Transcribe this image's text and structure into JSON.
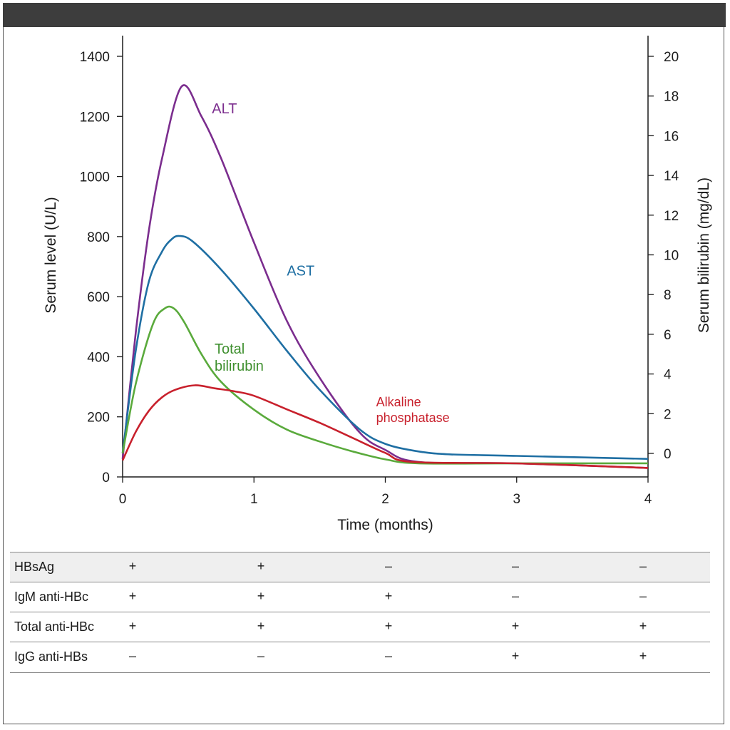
{
  "chart_data": {
    "type": "line",
    "xlabel": "Time (months)",
    "ylabel": "Serum level (U/L)",
    "y2label": "Serum bilirubin (mg/dL)",
    "xlim": [
      0,
      4
    ],
    "ylim": [
      0,
      1400
    ],
    "y2lim": [
      -1,
      21
    ],
    "x_ticks": [
      "0",
      "1",
      "2",
      "3",
      "4"
    ],
    "y_ticks": [
      "0",
      "200",
      "400",
      "600",
      "800",
      "1000",
      "1200",
      "1400"
    ],
    "y2_ticks": [
      "0",
      "2",
      "4",
      "6",
      "8",
      "10",
      "12",
      "14",
      "16",
      "18",
      "20"
    ],
    "grid": false,
    "series": [
      {
        "name": "ALT",
        "axis": "left",
        "color": "#7b2d8e",
        "x": [
          0,
          0.1,
          0.2,
          0.3,
          0.45,
          0.6,
          0.75,
          1.0,
          1.25,
          1.5,
          1.8,
          2.0,
          2.25,
          3.0,
          4.0
        ],
        "y": [
          60,
          480,
          820,
          1060,
          1300,
          1200,
          1060,
          780,
          520,
          330,
          150,
          90,
          50,
          45,
          30
        ]
      },
      {
        "name": "AST",
        "axis": "left",
        "color": "#1f6fa3",
        "x": [
          0,
          0.1,
          0.2,
          0.3,
          0.37,
          0.43,
          0.53,
          0.75,
          1.0,
          1.25,
          1.5,
          1.8,
          2.0,
          2.25,
          2.5,
          3.0,
          4.0
        ],
        "y": [
          80,
          420,
          650,
          750,
          790,
          802,
          785,
          690,
          560,
          420,
          290,
          160,
          110,
          85,
          75,
          70,
          60
        ]
      },
      {
        "name": "Total bilirubin",
        "axis": "right",
        "color": "#5aaa3c",
        "x": [
          0,
          0.1,
          0.23,
          0.32,
          0.39,
          0.47,
          0.6,
          0.75,
          1.0,
          1.25,
          1.5,
          1.75,
          2.0,
          2.25,
          3.0,
          4.0
        ],
        "y": [
          0,
          3.5,
          6.5,
          7.3,
          7.3,
          6.6,
          5.0,
          3.6,
          2.2,
          1.2,
          0.6,
          0.1,
          -0.3,
          -0.5,
          -0.5,
          -0.5
        ]
      },
      {
        "name": "Alkaline phosphatase",
        "axis": "left",
        "color": "#c8202c",
        "x": [
          0,
          0.1,
          0.2,
          0.3,
          0.4,
          0.55,
          0.7,
          0.85,
          1.0,
          1.25,
          1.5,
          1.75,
          2.0,
          2.2,
          3.0,
          4.0
        ],
        "y": [
          55,
          150,
          220,
          265,
          290,
          305,
          295,
          285,
          270,
          225,
          180,
          130,
          80,
          50,
          45,
          30
        ]
      }
    ],
    "labels": [
      {
        "series": "ALT",
        "lines": [
          "ALT"
        ],
        "x": 0.68,
        "y": 1210,
        "color": "#7b2d8e"
      },
      {
        "series": "AST",
        "lines": [
          "AST"
        ],
        "x": 1.25,
        "y": 670,
        "color": "#1f6fa3"
      },
      {
        "series": "Total bilirubin",
        "lines": [
          "Total",
          "bilirubin"
        ],
        "x": 0.7,
        "y": 410,
        "color": "#3e8f2e"
      },
      {
        "series": "Alkaline phosphatase",
        "lines": [
          "Alkaline",
          "phosphatase"
        ],
        "x": 1.93,
        "y": 235,
        "color": "#c8202c"
      }
    ]
  },
  "table": {
    "columns_x": [
      0,
      1,
      2,
      3,
      4
    ],
    "rows": [
      {
        "name": "HBsAg",
        "values": [
          "+",
          "+",
          "–",
          "–",
          "–"
        ]
      },
      {
        "name": "IgM anti-HBc",
        "values": [
          "+",
          "+",
          "+",
          "–",
          "–"
        ]
      },
      {
        "name": "Total anti-HBc",
        "values": [
          "+",
          "+",
          "+",
          "+",
          "+"
        ]
      },
      {
        "name": "IgG anti-HBs",
        "values": [
          "–",
          "–",
          "–",
          "+",
          "+"
        ]
      }
    ]
  }
}
